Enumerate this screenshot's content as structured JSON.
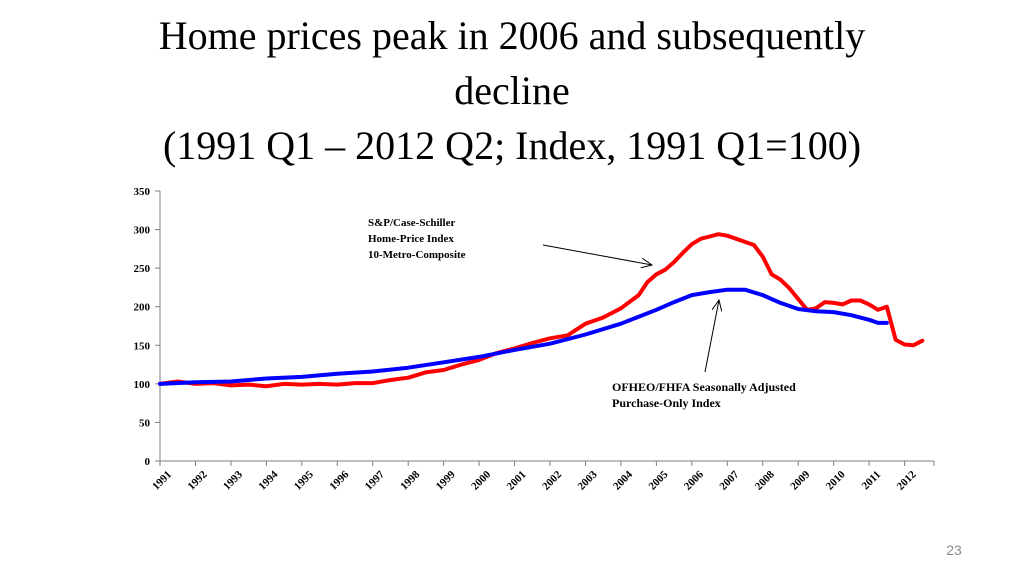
{
  "slide": {
    "title_line1": "Home prices peak in 2006 and subsequently",
    "title_line2": "decline",
    "title_line3": "(1991 Q1 – 2012 Q2; Index, 1991 Q1=100)",
    "page_number": "23"
  },
  "chart_data": {
    "type": "line",
    "title": "Home prices peak in 2006 and subsequently decline (1991 Q1 – 2012 Q2; Index, 1991 Q1=100)",
    "xlabel": "",
    "ylabel": "",
    "ylim": [
      0,
      350
    ],
    "yticks": [
      "0",
      "50",
      "100",
      "150",
      "200",
      "250",
      "300",
      "350"
    ],
    "x_ticks": [
      "1991",
      "1992",
      "1993",
      "1994",
      "1995",
      "1996",
      "1997",
      "1998",
      "1999",
      "2000",
      "2001",
      "2002",
      "2003",
      "2004",
      "2005",
      "2006",
      "2007",
      "2008",
      "2009",
      "2010",
      "2011",
      "2012"
    ],
    "grid": false,
    "legend": "none",
    "series": [
      {
        "name": "S&P/Case-Schiller Home-Price Index 10-Metro-Composite",
        "color": "#ff0000",
        "points": [
          [
            1991.0,
            100
          ],
          [
            1991.5,
            103
          ],
          [
            1992.0,
            100
          ],
          [
            1992.5,
            101
          ],
          [
            1993.0,
            98
          ],
          [
            1993.5,
            99
          ],
          [
            1994.0,
            97
          ],
          [
            1994.5,
            100
          ],
          [
            1995.0,
            99
          ],
          [
            1995.5,
            100
          ],
          [
            1996.0,
            99
          ],
          [
            1996.5,
            101
          ],
          [
            1997.0,
            101
          ],
          [
            1997.5,
            105
          ],
          [
            1998.0,
            108
          ],
          [
            1998.5,
            115
          ],
          [
            1999.0,
            118
          ],
          [
            1999.5,
            125
          ],
          [
            2000.0,
            131
          ],
          [
            2000.5,
            140
          ],
          [
            2001.0,
            146
          ],
          [
            2001.5,
            153
          ],
          [
            2002.0,
            159
          ],
          [
            2002.5,
            163
          ],
          [
            2003.0,
            178
          ],
          [
            2003.5,
            186
          ],
          [
            2004.0,
            198
          ],
          [
            2004.5,
            215
          ],
          [
            2004.75,
            232
          ],
          [
            2005.0,
            242
          ],
          [
            2005.25,
            248
          ],
          [
            2005.5,
            258
          ],
          [
            2005.75,
            270
          ],
          [
            2006.0,
            281
          ],
          [
            2006.25,
            288
          ],
          [
            2006.5,
            291
          ],
          [
            2006.75,
            294
          ],
          [
            2007.0,
            292
          ],
          [
            2007.25,
            288
          ],
          [
            2007.5,
            284
          ],
          [
            2007.75,
            280
          ],
          [
            2008.0,
            265
          ],
          [
            2008.25,
            242
          ],
          [
            2008.5,
            235
          ],
          [
            2008.75,
            224
          ],
          [
            2009.0,
            210
          ],
          [
            2009.25,
            196
          ],
          [
            2009.5,
            198
          ],
          [
            2009.75,
            206
          ],
          [
            2010.0,
            205
          ],
          [
            2010.25,
            203
          ],
          [
            2010.5,
            208
          ],
          [
            2010.75,
            208
          ],
          [
            2011.0,
            203
          ],
          [
            2011.25,
            196
          ],
          [
            2011.5,
            200
          ],
          [
            2011.75,
            157
          ],
          [
            2012.0,
            151
          ],
          [
            2012.25,
            150
          ],
          [
            2012.5,
            156
          ]
        ]
      },
      {
        "name": "OFHEO/FHFA Seasonally Adjusted Purchase-Only Index",
        "color": "#0000ff",
        "points": [
          [
            1991.0,
            100
          ],
          [
            1992.0,
            102
          ],
          [
            1993.0,
            103
          ],
          [
            1994.0,
            107
          ],
          [
            1995.0,
            109
          ],
          [
            1996.0,
            113
          ],
          [
            1997.0,
            116
          ],
          [
            1998.0,
            121
          ],
          [
            1999.0,
            128
          ],
          [
            2000.0,
            135
          ],
          [
            2001.0,
            144
          ],
          [
            2002.0,
            152
          ],
          [
            2003.0,
            164
          ],
          [
            2004.0,
            178
          ],
          [
            2005.0,
            196
          ],
          [
            2005.5,
            206
          ],
          [
            2006.0,
            215
          ],
          [
            2006.5,
            219
          ],
          [
            2007.0,
            222
          ],
          [
            2007.5,
            222
          ],
          [
            2008.0,
            215
          ],
          [
            2008.5,
            205
          ],
          [
            2009.0,
            197
          ],
          [
            2009.5,
            194
          ],
          [
            2010.0,
            193
          ],
          [
            2010.5,
            189
          ],
          [
            2011.0,
            183
          ],
          [
            2011.25,
            179
          ],
          [
            2011.5,
            179
          ]
        ]
      }
    ],
    "annotations": [
      {
        "lines": [
          "S&P/Case-Schiller",
          "Home-Price Index",
          "10-Metro-Composite"
        ],
        "points_to": [
          2005.9,
          266
        ]
      },
      {
        "lines": [
          "OFHEO/FHFA Seasonally Adjusted",
          "Purchase-Only Index"
        ],
        "points_to": [
          2007.0,
          210
        ]
      }
    ]
  }
}
